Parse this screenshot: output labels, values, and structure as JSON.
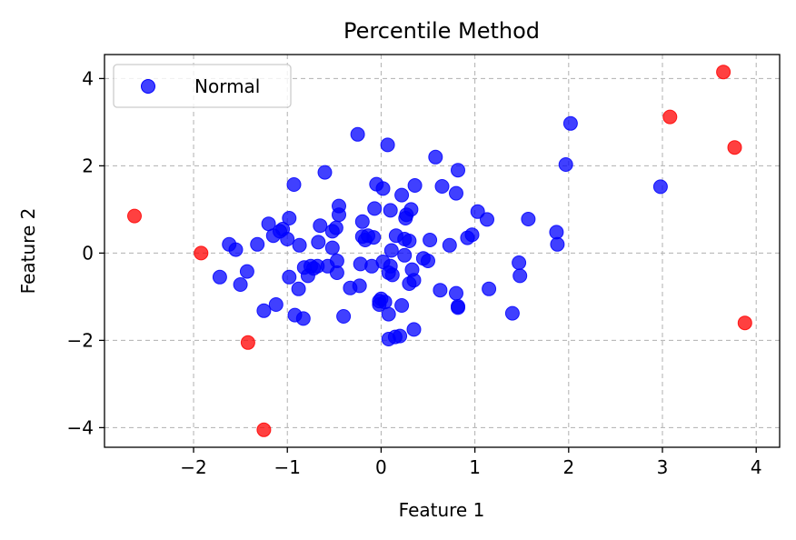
{
  "chart_data": {
    "type": "scatter",
    "title": "Percentile Method",
    "xlabel": "Feature 1",
    "ylabel": "Feature 2",
    "xlim": [
      -2.95,
      4.25
    ],
    "ylim": [
      -4.45,
      4.55
    ],
    "xticks": [
      -2,
      -1,
      0,
      1,
      2,
      3,
      4
    ],
    "yticks": [
      -4,
      -2,
      0,
      2,
      4
    ],
    "xtick_labels": [
      "−2",
      "−1",
      "0",
      "1",
      "2",
      "3",
      "4"
    ],
    "ytick_labels": [
      "−4",
      "−2",
      "0",
      "2",
      "4"
    ],
    "grid": true,
    "legend": {
      "position": "top-left",
      "entries": [
        "Normal"
      ]
    },
    "series": [
      {
        "name": "Normal",
        "color": "#0000ff",
        "points": [
          [
            -1.72,
            -0.55
          ],
          [
            -1.62,
            0.2
          ],
          [
            -1.55,
            0.08
          ],
          [
            -1.5,
            -0.72
          ],
          [
            -1.43,
            -0.42
          ],
          [
            -1.32,
            0.2
          ],
          [
            -1.25,
            -1.32
          ],
          [
            -1.2,
            0.67
          ],
          [
            -1.15,
            0.4
          ],
          [
            -1.12,
            -1.18
          ],
          [
            -1.08,
            0.5
          ],
          [
            -1.05,
            0.55
          ],
          [
            -1.0,
            0.32
          ],
          [
            -0.98,
            0.8
          ],
          [
            -0.98,
            -0.55
          ],
          [
            -0.93,
            1.57
          ],
          [
            -0.92,
            -1.42
          ],
          [
            -0.88,
            -0.82
          ],
          [
            -0.87,
            0.18
          ],
          [
            -0.83,
            -1.5
          ],
          [
            -0.82,
            -0.33
          ],
          [
            -0.78,
            -0.52
          ],
          [
            -0.75,
            -0.3
          ],
          [
            -0.72,
            -0.35
          ],
          [
            -0.68,
            -0.3
          ],
          [
            -0.67,
            0.25
          ],
          [
            -0.65,
            0.63
          ],
          [
            -0.6,
            1.85
          ],
          [
            -0.57,
            -0.3
          ],
          [
            -0.52,
            0.12
          ],
          [
            -0.52,
            0.5
          ],
          [
            -0.48,
            0.58
          ],
          [
            -0.47,
            -0.45
          ],
          [
            -0.47,
            -0.18
          ],
          [
            -0.45,
            0.88
          ],
          [
            -0.45,
            1.08
          ],
          [
            -0.4,
            -1.45
          ],
          [
            -0.33,
            -0.8
          ],
          [
            -0.25,
            2.72
          ],
          [
            -0.23,
            -0.75
          ],
          [
            -0.22,
            -0.25
          ],
          [
            -0.2,
            0.38
          ],
          [
            -0.2,
            0.72
          ],
          [
            -0.17,
            0.3
          ],
          [
            -0.14,
            0.4
          ],
          [
            -0.1,
            -0.3
          ],
          [
            -0.08,
            0.36
          ],
          [
            -0.07,
            1.02
          ],
          [
            -0.05,
            1.58
          ],
          [
            -0.02,
            -1.1
          ],
          [
            -0.02,
            -1.18
          ],
          [
            0.0,
            -1.05
          ],
          [
            0.02,
            1.48
          ],
          [
            0.02,
            -0.2
          ],
          [
            0.04,
            -1.12
          ],
          [
            0.07,
            2.48
          ],
          [
            0.08,
            -1.4
          ],
          [
            0.08,
            -1.97
          ],
          [
            0.08,
            -0.45
          ],
          [
            0.1,
            -0.3
          ],
          [
            0.11,
            0.06
          ],
          [
            0.1,
            0.98
          ],
          [
            0.12,
            -0.5
          ],
          [
            0.15,
            -1.92
          ],
          [
            0.16,
            0.4
          ],
          [
            0.2,
            -1.9
          ],
          [
            0.22,
            -1.2
          ],
          [
            0.22,
            1.33
          ],
          [
            0.25,
            0.32
          ],
          [
            0.25,
            -0.05
          ],
          [
            0.26,
            0.8
          ],
          [
            0.27,
            0.88
          ],
          [
            0.3,
            -0.7
          ],
          [
            0.3,
            0.28
          ],
          [
            0.32,
            1.0
          ],
          [
            0.33,
            -0.38
          ],
          [
            0.35,
            -0.62
          ],
          [
            0.35,
            -1.75
          ],
          [
            0.36,
            1.55
          ],
          [
            0.45,
            -0.12
          ],
          [
            0.5,
            -0.18
          ],
          [
            0.52,
            0.3
          ],
          [
            0.58,
            2.2
          ],
          [
            0.63,
            -0.85
          ],
          [
            0.65,
            1.53
          ],
          [
            0.73,
            0.18
          ],
          [
            0.8,
            -0.92
          ],
          [
            0.8,
            1.37
          ],
          [
            0.82,
            1.9
          ],
          [
            0.82,
            -1.22
          ],
          [
            0.82,
            -1.25
          ],
          [
            0.92,
            0.35
          ],
          [
            0.97,
            0.42
          ],
          [
            1.03,
            0.95
          ],
          [
            1.13,
            0.77
          ],
          [
            1.15,
            -0.82
          ],
          [
            1.4,
            -1.38
          ],
          [
            1.47,
            -0.22
          ],
          [
            1.48,
            -0.52
          ],
          [
            1.57,
            0.78
          ],
          [
            1.87,
            0.48
          ],
          [
            1.88,
            0.2
          ],
          [
            1.97,
            2.03
          ],
          [
            2.02,
            2.97
          ],
          [
            2.98,
            1.52
          ]
        ]
      },
      {
        "name": "",
        "color": "#ff0000",
        "points": [
          [
            -2.63,
            0.85
          ],
          [
            -1.92,
            0.0
          ],
          [
            -1.42,
            -2.05
          ],
          [
            -1.25,
            -4.05
          ],
          [
            3.08,
            3.12
          ],
          [
            3.65,
            4.15
          ],
          [
            3.77,
            2.42
          ],
          [
            3.88,
            -1.6
          ]
        ]
      }
    ]
  }
}
